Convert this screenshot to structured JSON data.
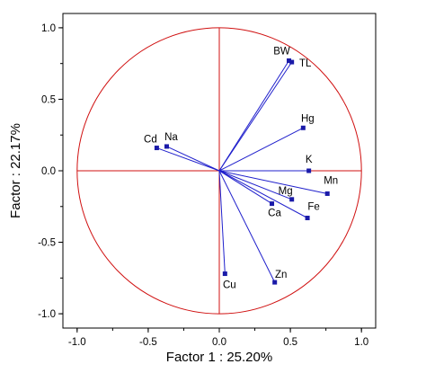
{
  "chart_data": {
    "type": "scatter",
    "xlabel": "Factor 1 : 25.20%",
    "ylabel": "Factor : 22.17%",
    "xlim": [
      -1.1,
      1.1
    ],
    "ylim": [
      -1.1,
      1.1
    ],
    "xticks": [
      -1.0,
      -0.5,
      0.0,
      0.5,
      1.0
    ],
    "yticks": [
      -1.0,
      -0.5,
      0.0,
      0.5,
      1.0
    ],
    "xtick_labels": [
      "-1.0",
      "-0.5",
      "0.0",
      "0.5",
      "1.0"
    ],
    "ytick_labels": [
      "-1.0",
      "-0.5",
      "0.0",
      "0.5",
      "1.0"
    ],
    "unit_circle": true,
    "crosshair": true,
    "points": [
      {
        "label": "BW",
        "x": 0.49,
        "y": 0.77
      },
      {
        "label": "TL",
        "x": 0.51,
        "y": 0.76
      },
      {
        "label": "Hg",
        "x": 0.59,
        "y": 0.3
      },
      {
        "label": "K",
        "x": 0.63,
        "y": 0.0
      },
      {
        "label": "Mn",
        "x": 0.76,
        "y": -0.16
      },
      {
        "label": "Mg",
        "x": 0.51,
        "y": -0.2
      },
      {
        "label": "Ca",
        "x": 0.37,
        "y": -0.23
      },
      {
        "label": "Fe",
        "x": 0.62,
        "y": -0.33
      },
      {
        "label": "Zn",
        "x": 0.39,
        "y": -0.78
      },
      {
        "label": "Cu",
        "x": 0.04,
        "y": -0.72
      },
      {
        "label": "Cd",
        "x": -0.44,
        "y": 0.16
      },
      {
        "label": "Na",
        "x": -0.37,
        "y": 0.17
      }
    ],
    "colors": {
      "vectors": "#2020cc",
      "points": "#1a1aa8",
      "circle": "#d01010",
      "crosshair": "#d01010",
      "frame": "#000000"
    }
  }
}
